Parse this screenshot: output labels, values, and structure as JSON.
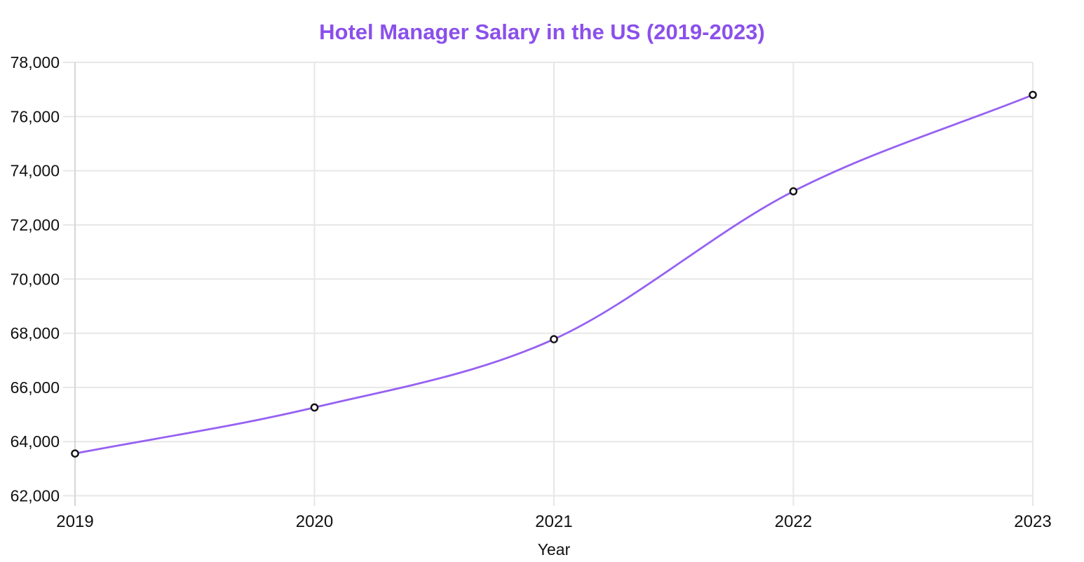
{
  "chart_data": {
    "type": "line",
    "title": "Hotel Manager Salary in the US (2019-2023)",
    "xlabel": "Year",
    "ylabel": "",
    "categories": [
      "2019",
      "2020",
      "2021",
      "2022",
      "2023"
    ],
    "values": [
      63560,
      65260,
      67780,
      73240,
      76800
    ],
    "ylim": [
      62000,
      78000
    ],
    "y_tick_step": 2000,
    "y_tick_labels": [
      "62,000",
      "64,000",
      "66,000",
      "68,000",
      "70,000",
      "72,000",
      "74,000",
      "76,000",
      "78,000"
    ],
    "grid": true,
    "legend": "none",
    "smooth": true,
    "marker": "open-circle",
    "colors": {
      "line": "#9661f2",
      "title": "#8b50eb",
      "marker_stroke": "#111111",
      "marker_fill": "#ffffff",
      "gridline": "#e7e7e7",
      "axis_line": "#d6d6d6",
      "tick_label": "#111111"
    }
  }
}
